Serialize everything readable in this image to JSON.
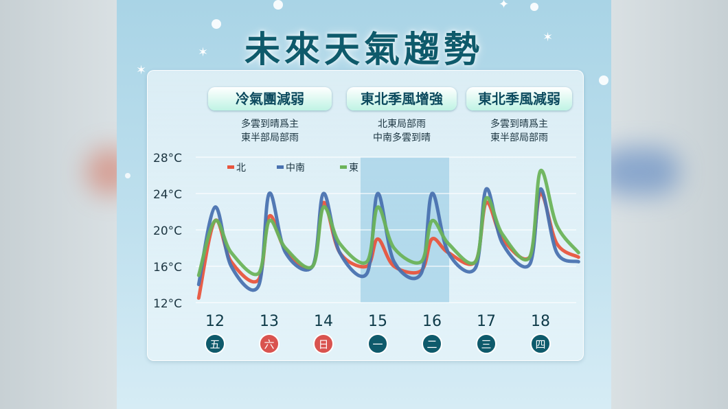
{
  "title": "未來天氣趨勢",
  "periods": [
    {
      "label": "冷氣團減弱",
      "desc": [
        "多雲到晴爲主",
        "東半部局部雨"
      ]
    },
    {
      "label": "東北季風增強",
      "desc": [
        "北東局部雨",
        "中南多雲到晴"
      ]
    },
    {
      "label": "東北季風減弱",
      "desc": [
        "多雲到晴爲主",
        "東半部局部雨"
      ]
    }
  ],
  "colors": {
    "北": "#e8553e",
    "中南": "#4a72b0",
    "東": "#6bb35a",
    "highlight": "#8ec6e2",
    "weekend": "#d9534f",
    "weekday": "#0e5a6b"
  },
  "chart_data": {
    "type": "line",
    "title": "",
    "xlabel": "",
    "ylabel": "",
    "ylim": [
      12,
      28
    ],
    "yticks": [
      "12°C",
      "16°C",
      "20°C",
      "24°C",
      "28°C"
    ],
    "categories": [
      "12",
      "13",
      "14",
      "15",
      "16",
      "17",
      "18"
    ],
    "weekdays": [
      "五",
      "六",
      "日",
      "一",
      "二",
      "三",
      "四"
    ],
    "weekend": [
      false,
      true,
      true,
      false,
      false,
      false,
      false
    ],
    "highlight_range": [
      "15",
      "16"
    ],
    "legend": [
      "北",
      "中南",
      "東"
    ],
    "x": [
      11.7,
      12.0,
      12.3,
      12.8,
      13.0,
      13.3,
      13.8,
      14.0,
      14.3,
      14.8,
      15.0,
      15.3,
      15.8,
      16.0,
      16.3,
      16.8,
      17.0,
      17.3,
      17.8,
      18.0,
      18.3,
      18.7
    ],
    "series": [
      {
        "name": "北",
        "values": [
          12.5,
          21.0,
          16.5,
          14.5,
          21.5,
          17.8,
          16.0,
          23.0,
          17.5,
          16.0,
          19.0,
          16.0,
          15.5,
          19.0,
          17.5,
          16.5,
          23.0,
          19.0,
          17.0,
          24.0,
          18.5,
          17.0
        ]
      },
      {
        "name": "中南",
        "values": [
          14.0,
          22.5,
          16.0,
          13.8,
          24.0,
          17.5,
          16.0,
          24.0,
          17.5,
          15.2,
          24.0,
          16.5,
          15.2,
          24.0,
          17.5,
          15.8,
          24.5,
          18.5,
          16.2,
          24.5,
          17.5,
          16.5
        ]
      },
      {
        "name": "東",
        "values": [
          15.0,
          21.0,
          17.5,
          15.2,
          21.0,
          18.0,
          16.0,
          22.5,
          18.5,
          16.5,
          22.5,
          18.0,
          16.5,
          21.0,
          18.5,
          16.5,
          23.5,
          19.5,
          17.0,
          26.5,
          20.5,
          17.5
        ]
      }
    ]
  }
}
